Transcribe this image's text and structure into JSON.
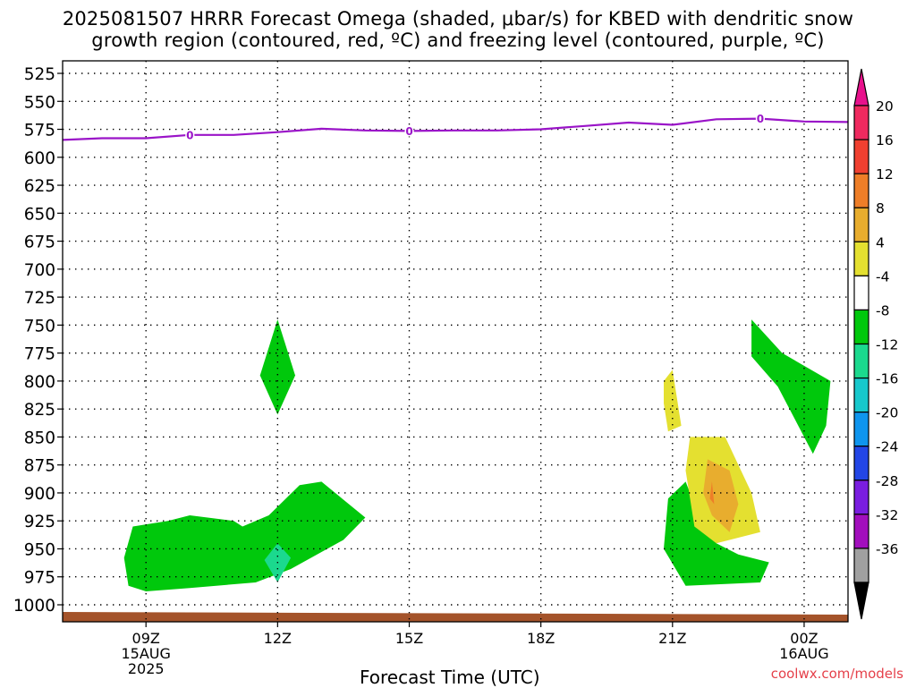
{
  "title_line1": "2025081507 HRRR Forecast Omega (shaded, μbar/s) for KBED with dendritic snow",
  "title_line2": "growth region (contoured, red, ºC) and freezing level (contoured, purple, ºC)",
  "credit": "coolwx.com/models",
  "chart_data": {
    "type": "contour",
    "title": "2025081507 HRRR Forecast Omega (shaded, μbar/s) for KBED with dendritic snow growth region (contoured, red, ºC) and freezing level (contoured, purple, ºC)",
    "xlabel": "Forecast Time (UTC)",
    "ylabel": "",
    "y_axis": {
      "ticks": [
        "525",
        "550",
        "575",
        "600",
        "625",
        "650",
        "675",
        "700",
        "725",
        "750",
        "775",
        "800",
        "825",
        "850",
        "875",
        "900",
        "925",
        "950",
        "975",
        "1000"
      ],
      "inverted": true,
      "unit": "hPa"
    },
    "x_axis": {
      "ticks": [
        {
          "label": "09Z",
          "sub": [
            "15AUG",
            "2025"
          ],
          "hour": 9
        },
        {
          "label": "12Z",
          "sub": [],
          "hour": 12
        },
        {
          "label": "15Z",
          "sub": [],
          "hour": 15
        },
        {
          "label": "18Z",
          "sub": [],
          "hour": 18
        },
        {
          "label": "21Z",
          "sub": [],
          "hour": 21
        },
        {
          "label": "00Z",
          "sub": [
            "16AUG"
          ],
          "hour": 24
        }
      ],
      "range_hours": [
        7.1,
        25.0
      ]
    },
    "grid": "dotted",
    "colorbar": {
      "labels": [
        "20",
        "16",
        "12",
        "8",
        "4",
        "-4",
        "-8",
        "-12",
        "-16",
        "-20",
        "-24",
        "-28",
        "-32",
        "-36"
      ],
      "colors": [
        "#ef2a5f",
        "#f04030",
        "#ee7e28",
        "#e8ad2e",
        "#e4e030",
        "#ffffff",
        "#00c80c",
        "#1bd98e",
        "#17c8cc",
        "#0f95ee",
        "#2346e6",
        "#7a1ee0",
        "#a20fbd",
        "#a0a0a0"
      ],
      "top_arrow_color": "#e8118c",
      "bottom_arrow_color": "#000000"
    },
    "freezing_level": {
      "color": "#9a14c8",
      "label": "0",
      "points": [
        [
          7.1,
          584.5
        ],
        [
          8,
          583
        ],
        [
          9,
          583
        ],
        [
          10,
          580
        ],
        [
          11,
          580
        ],
        [
          12,
          577.5
        ],
        [
          13,
          574.5
        ],
        [
          14,
          576
        ],
        [
          15,
          576.5
        ],
        [
          16,
          576
        ],
        [
          17,
          576
        ],
        [
          18,
          575
        ],
        [
          19,
          572
        ],
        [
          20,
          569
        ],
        [
          21,
          571
        ],
        [
          22,
          566
        ],
        [
          23,
          565.5
        ],
        [
          24,
          568
        ],
        [
          25,
          568.5
        ]
      ],
      "label_points": [
        [
          10,
          580
        ],
        [
          15,
          576.5
        ],
        [
          23,
          565.5
        ]
      ]
    },
    "omega_regions": [
      {
        "value_range": "-4 to -8",
        "color": "#00c80c",
        "points": [
          [
            8.5,
            958
          ],
          [
            8.7,
            930
          ],
          [
            9.5,
            925
          ],
          [
            10,
            920
          ],
          [
            11,
            925
          ],
          [
            11.2,
            930
          ],
          [
            11.8,
            920
          ],
          [
            12.5,
            893
          ],
          [
            13,
            890
          ],
          [
            14,
            922
          ],
          [
            13.5,
            942
          ],
          [
            12.3,
            968
          ],
          [
            11.5,
            980
          ],
          [
            10,
            985
          ],
          [
            9,
            988
          ],
          [
            8.6,
            983
          ]
        ]
      },
      {
        "value_range": "-8 to -12",
        "color": "#1bd98e",
        "points": [
          [
            12,
            945
          ],
          [
            12.3,
            958
          ],
          [
            12,
            980
          ],
          [
            11.7,
            960
          ]
        ]
      },
      {
        "value_range": "-4 to -8",
        "color": "#00c80c",
        "points": [
          [
            12,
            745
          ],
          [
            12.4,
            795
          ],
          [
            12,
            830
          ],
          [
            11.6,
            795
          ]
        ]
      },
      {
        "value_range": "-4 to -8",
        "color": "#00c80c",
        "points": [
          [
            22.8,
            745
          ],
          [
            23.5,
            775
          ],
          [
            24.6,
            800
          ],
          [
            24.5,
            840
          ],
          [
            24.2,
            865
          ],
          [
            23.4,
            805
          ],
          [
            22.8,
            778
          ]
        ]
      },
      {
        "value_range": "-4 to -8",
        "color": "#00c80c",
        "points": [
          [
            20.9,
            905
          ],
          [
            21.3,
            890
          ],
          [
            21.6,
            920
          ],
          [
            22,
            945
          ],
          [
            22.5,
            955
          ],
          [
            23.2,
            962
          ],
          [
            23,
            980
          ],
          [
            21.3,
            983
          ],
          [
            20.8,
            950
          ]
        ]
      },
      {
        "value_range": "4 to 8",
        "color": "#e4e030",
        "points": [
          [
            20.8,
            800
          ],
          [
            21,
            790
          ],
          [
            21.2,
            840
          ],
          [
            20.9,
            845
          ],
          [
            20.8,
            820
          ]
        ]
      },
      {
        "value_range": "4 to 8",
        "color": "#e4e030",
        "points": [
          [
            21.4,
            850
          ],
          [
            22.2,
            850
          ],
          [
            22.8,
            900
          ],
          [
            23,
            935
          ],
          [
            22,
            945
          ],
          [
            21.5,
            930
          ],
          [
            21.3,
            880
          ]
        ]
      },
      {
        "value_range": "8 to 12",
        "color": "#e8ad2e",
        "points": [
          [
            21.8,
            870
          ],
          [
            22.3,
            880
          ],
          [
            22.5,
            910
          ],
          [
            22.3,
            935
          ],
          [
            21.9,
            920
          ],
          [
            21.7,
            900
          ]
        ]
      },
      {
        "value_range": "12 to 16",
        "color": "#ee7e28",
        "points": [
          [
            21.85,
            905
          ],
          [
            21.9,
            890
          ],
          [
            21.95,
            910
          ]
        ]
      }
    ],
    "ground_color": "#a4532a"
  }
}
